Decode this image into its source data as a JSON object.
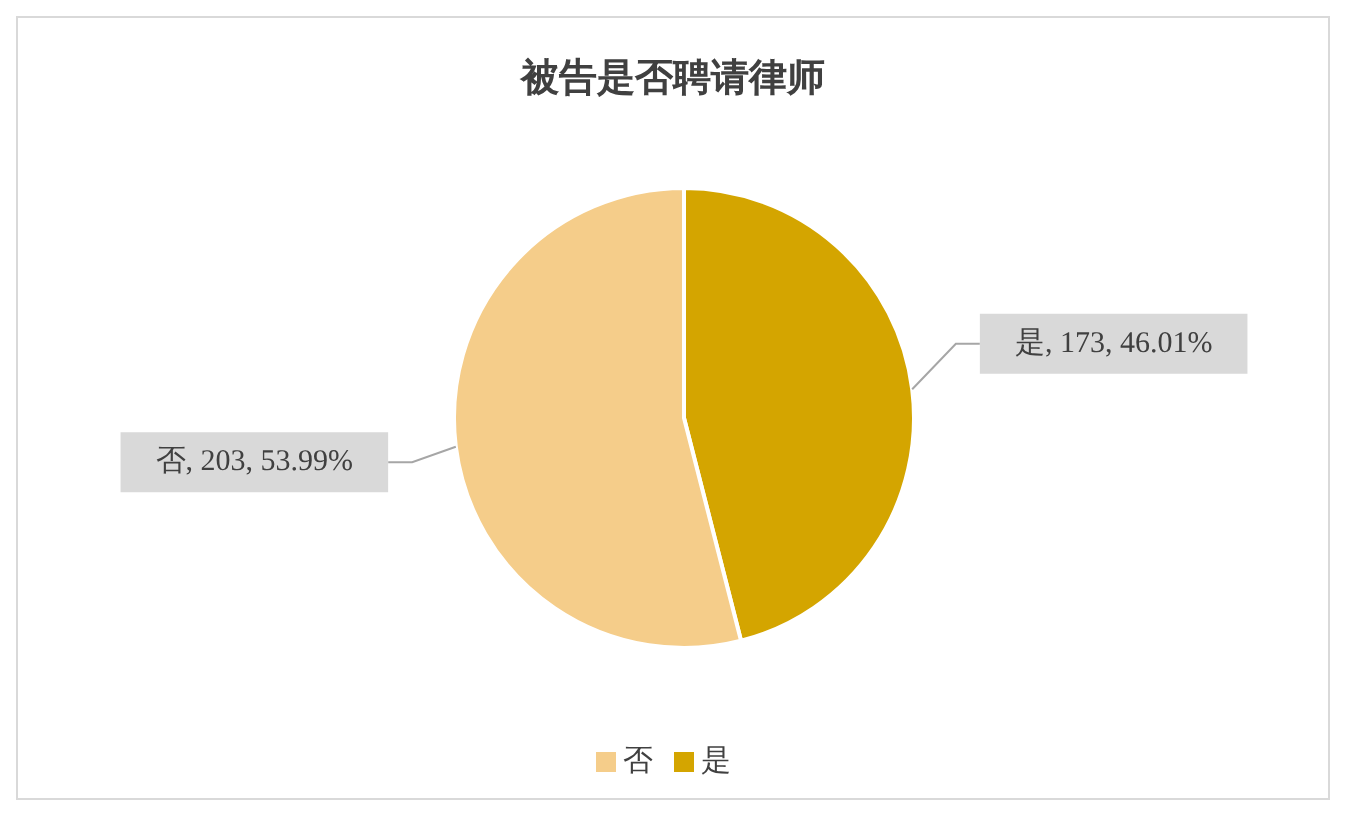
{
  "chart_data": {
    "type": "pie",
    "title": "被告是否聘请律师",
    "categories": [
      "是",
      "否"
    ],
    "values": [
      173,
      203
    ],
    "colors": [
      "#d4a500",
      "#f5cd8a"
    ],
    "value_labels": [
      "是, 173, 46.01%",
      "否, 203, 53.99%"
    ],
    "legend": "bottom"
  }
}
